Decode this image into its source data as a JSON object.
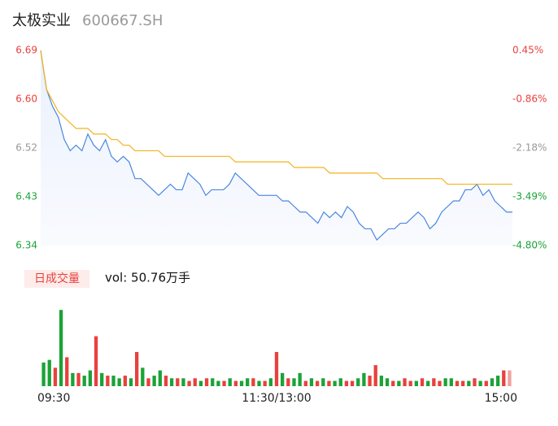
{
  "chart_data": [
    {
      "type": "line",
      "title": "太极实业",
      "subtitle": "600667.SH",
      "ylim": [
        6.34,
        6.69
      ],
      "yticks": [
        {
          "value": 6.34,
          "label": "6.34"
        },
        {
          "value": 6.4275,
          "label": "6.43"
        },
        {
          "value": 6.515,
          "label": "6.52"
        },
        {
          "value": 6.6025,
          "label": "6.60"
        },
        {
          "value": 6.69,
          "label": "6.69"
        }
      ],
      "y2lim": [
        -4.8,
        0.45
      ],
      "y2ticks": [
        {
          "value": -4.8,
          "label": "-4.80%"
        },
        {
          "value": -3.4875,
          "label": "-3.49%"
        },
        {
          "value": -2.175,
          "label": "-2.18%"
        },
        {
          "value": -0.8625,
          "label": "-0.86%"
        },
        {
          "value": 0.45,
          "label": "0.45%"
        }
      ],
      "tick_colors": [
        "#1aa336",
        "#1aa336",
        "#999999",
        "#e8413e",
        "#e8413e"
      ],
      "series": [
        {
          "color": "#4a86e0",
          "values": [
            6.69,
            6.62,
            6.59,
            6.57,
            6.53,
            6.51,
            6.52,
            6.51,
            6.54,
            6.52,
            6.51,
            6.53,
            6.5,
            6.49,
            6.5,
            6.49,
            6.46,
            6.46,
            6.45,
            6.44,
            6.43,
            6.44,
            6.45,
            6.44,
            6.44,
            6.47,
            6.46,
            6.45,
            6.43,
            6.44,
            6.44,
            6.44,
            6.45,
            6.47,
            6.46,
            6.45,
            6.44,
            6.43,
            6.43,
            6.43,
            6.43,
            6.42,
            6.42,
            6.41,
            6.4,
            6.4,
            6.39,
            6.38,
            6.4,
            6.39,
            6.4,
            6.39,
            6.41,
            6.4,
            6.38,
            6.37,
            6.37,
            6.35,
            6.36,
            6.37,
            6.37,
            6.38,
            6.38,
            6.39,
            6.4,
            6.39,
            6.37,
            6.38,
            6.4,
            6.41,
            6.42,
            6.42,
            6.44,
            6.44,
            6.45,
            6.43,
            6.44,
            6.42,
            6.41,
            6.4,
            6.4
          ]
        },
        {
          "color": "#f2b31c",
          "values": [
            6.69,
            6.62,
            6.6,
            6.58,
            6.57,
            6.56,
            6.55,
            6.55,
            6.55,
            6.54,
            6.54,
            6.54,
            6.53,
            6.53,
            6.52,
            6.52,
            6.51,
            6.51,
            6.51,
            6.51,
            6.51,
            6.5,
            6.5,
            6.5,
            6.5,
            6.5,
            6.5,
            6.5,
            6.5,
            6.5,
            6.5,
            6.5,
            6.5,
            6.49,
            6.49,
            6.49,
            6.49,
            6.49,
            6.49,
            6.49,
            6.49,
            6.49,
            6.49,
            6.48,
            6.48,
            6.48,
            6.48,
            6.48,
            6.48,
            6.47,
            6.47,
            6.47,
            6.47,
            6.47,
            6.47,
            6.47,
            6.47,
            6.47,
            6.46,
            6.46,
            6.46,
            6.46,
            6.46,
            6.46,
            6.46,
            6.46,
            6.46,
            6.46,
            6.46,
            6.45,
            6.45,
            6.45,
            6.45,
            6.45,
            6.45,
            6.45,
            6.45,
            6.45,
            6.45,
            6.45,
            6.45
          ]
        }
      ]
    },
    {
      "type": "bar",
      "title": "日成交量",
      "subtitle": "vol: 50.76万手",
      "ylim": [
        0,
        3
      ],
      "categories": [
        "09:30",
        null,
        null,
        null,
        null,
        null,
        null,
        null,
        null,
        null,
        null,
        null,
        null,
        null,
        null,
        null,
        null,
        null,
        null,
        null,
        null,
        null,
        null,
        null,
        null,
        null,
        null,
        null,
        null,
        null,
        null,
        null,
        null,
        null,
        null,
        null,
        null,
        null,
        null,
        null,
        "11:30/13:00",
        null,
        null,
        null,
        null,
        null,
        null,
        null,
        null,
        null,
        null,
        null,
        null,
        null,
        null,
        null,
        null,
        null,
        null,
        null,
        null,
        null,
        null,
        null,
        null,
        null,
        null,
        null,
        null,
        null,
        null,
        null,
        null,
        null,
        null,
        null,
        null,
        null,
        null,
        null,
        "15:00"
      ],
      "values": [
        0.9,
        1.0,
        0.7,
        2.9,
        1.1,
        0.5,
        0.5,
        0.4,
        0.6,
        1.9,
        0.5,
        0.4,
        0.4,
        0.3,
        0.4,
        0.3,
        1.3,
        0.7,
        0.3,
        0.4,
        0.6,
        0.4,
        0.3,
        0.3,
        0.3,
        0.2,
        0.3,
        0.2,
        0.3,
        0.3,
        0.2,
        0.2,
        0.3,
        0.2,
        0.2,
        0.3,
        0.3,
        0.2,
        0.2,
        0.3,
        1.3,
        0.5,
        0.3,
        0.3,
        0.5,
        0.2,
        0.3,
        0.2,
        0.3,
        0.2,
        0.2,
        0.3,
        0.2,
        0.2,
        0.3,
        0.5,
        0.4,
        0.8,
        0.4,
        0.3,
        0.2,
        0.2,
        0.3,
        0.2,
        0.2,
        0.3,
        0.2,
        0.3,
        0.2,
        0.3,
        0.3,
        0.2,
        0.2,
        0.2,
        0.3,
        0.2,
        0.2,
        0.3,
        0.4,
        0.6,
        0.6
      ],
      "colors": [
        "#1aa336",
        "#1aa336",
        "#e8413e",
        "#1aa336",
        "#e8413e",
        "#1aa336",
        "#e8413e",
        "#1aa336",
        "#1aa336",
        "#e8413e",
        "#1aa336",
        "#e8413e",
        "#1aa336",
        "#1aa336",
        "#e8413e",
        "#1aa336",
        "#e8413e",
        "#1aa336",
        "#e8413e",
        "#1aa336",
        "#1aa336",
        "#e8413e",
        "#1aa336",
        "#e8413e",
        "#1aa336",
        "#e8413e",
        "#e8413e",
        "#1aa336",
        "#e8413e",
        "#1aa336",
        "#1aa336",
        "#e8413e",
        "#1aa336",
        "#e8413e",
        "#1aa336",
        "#1aa336",
        "#e8413e",
        "#1aa336",
        "#e8413e",
        "#1aa336",
        "#e8413e",
        "#1aa336",
        "#e8413e",
        "#1aa336",
        "#1aa336",
        "#e8413e",
        "#1aa336",
        "#e8413e",
        "#1aa336",
        "#e8413e",
        "#1aa336",
        "#1aa336",
        "#e8413e",
        "#e8413e",
        "#1aa336",
        "#1aa336",
        "#e8413e",
        "#e8413e",
        "#1aa336",
        "#1aa336",
        "#e8413e",
        "#1aa336",
        "#e8413e",
        "#e8413e",
        "#1aa336",
        "#e8413e",
        "#1aa336",
        "#e8413e",
        "#e8413e",
        "#1aa336",
        "#1aa336",
        "#e8413e",
        "#e8413e",
        "#1aa336",
        "#e8413e",
        "#1aa336",
        "#e8413e",
        "#1aa336",
        "#1aa336",
        "#e8413e",
        "#f0a0a0"
      ]
    }
  ]
}
